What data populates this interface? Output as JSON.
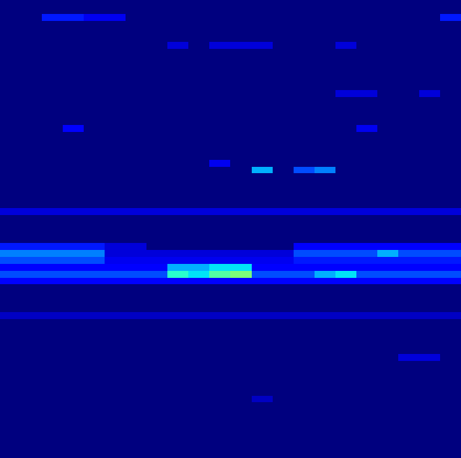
{
  "chart_data": {
    "type": "heatmap",
    "color": "jet",
    "tick_labels": false,
    "color_range": [
      0,
      1
    ],
    "cells": [
      [
        0,
        0,
        0,
        0,
        0,
        0,
        0,
        0,
        0,
        0,
        0,
        0,
        0,
        0,
        0,
        0,
        0,
        0,
        0,
        0,
        0,
        0
      ],
      [
        0,
        0,
        0,
        0,
        0,
        0,
        0,
        0,
        0,
        0,
        0,
        0,
        0,
        0,
        0,
        0,
        0,
        0,
        0,
        0,
        0,
        0
      ],
      [
        0,
        0,
        0.15,
        0.15,
        0.1,
        0.1,
        0,
        0,
        0,
        0,
        0,
        0,
        0,
        0,
        0,
        0,
        0,
        0,
        0,
        0,
        0,
        0.15
      ],
      [
        0,
        0,
        0,
        0,
        0,
        0,
        0,
        0,
        0,
        0,
        0,
        0,
        0,
        0,
        0,
        0,
        0,
        0,
        0,
        0,
        0,
        0
      ],
      [
        0,
        0,
        0,
        0,
        0,
        0,
        0,
        0,
        0,
        0,
        0,
        0,
        0,
        0,
        0,
        0,
        0,
        0,
        0,
        0,
        0,
        0
      ],
      [
        0,
        0,
        0,
        0,
        0,
        0,
        0,
        0,
        0,
        0,
        0,
        0,
        0,
        0,
        0,
        0,
        0,
        0,
        0,
        0,
        0,
        0
      ],
      [
        0,
        0,
        0,
        0,
        0,
        0,
        0,
        0,
        0.08,
        0,
        0.08,
        0.08,
        0.08,
        0,
        0,
        0,
        0.08,
        0,
        0,
        0,
        0,
        0
      ],
      [
        0,
        0,
        0,
        0,
        0,
        0,
        0,
        0,
        0,
        0,
        0,
        0,
        0,
        0,
        0,
        0,
        0,
        0,
        0,
        0,
        0,
        0
      ],
      [
        0,
        0,
        0,
        0,
        0,
        0,
        0,
        0,
        0,
        0,
        0,
        0,
        0,
        0,
        0,
        0,
        0,
        0,
        0,
        0,
        0,
        0
      ],
      [
        0,
        0,
        0,
        0,
        0,
        0,
        0,
        0,
        0,
        0,
        0,
        0,
        0,
        0,
        0,
        0,
        0,
        0,
        0,
        0,
        0,
        0
      ],
      [
        0,
        0,
        0,
        0,
        0,
        0,
        0,
        0,
        0,
        0,
        0,
        0,
        0,
        0,
        0,
        0,
        0,
        0,
        0,
        0,
        0,
        0
      ],
      [
        0,
        0,
        0,
        0,
        0,
        0,
        0,
        0,
        0,
        0,
        0,
        0,
        0,
        0,
        0,
        0,
        0,
        0,
        0,
        0,
        0,
        0
      ],
      [
        0,
        0,
        0,
        0,
        0,
        0,
        0,
        0,
        0,
        0,
        0,
        0,
        0,
        0,
        0,
        0,
        0,
        0,
        0,
        0,
        0,
        0
      ],
      [
        0,
        0,
        0,
        0,
        0,
        0,
        0,
        0,
        0,
        0,
        0,
        0,
        0,
        0,
        0,
        0,
        0.08,
        0.08,
        0,
        0,
        0.08,
        0
      ],
      [
        0,
        0,
        0,
        0,
        0,
        0,
        0,
        0,
        0,
        0,
        0,
        0,
        0,
        0,
        0,
        0,
        0,
        0,
        0,
        0,
        0,
        0
      ],
      [
        0,
        0,
        0,
        0,
        0,
        0,
        0,
        0,
        0,
        0,
        0,
        0,
        0,
        0,
        0,
        0,
        0,
        0,
        0,
        0,
        0,
        0
      ],
      [
        0,
        0,
        0,
        0,
        0,
        0,
        0,
        0,
        0,
        0,
        0,
        0,
        0,
        0,
        0,
        0,
        0,
        0,
        0,
        0,
        0,
        0
      ],
      [
        0,
        0,
        0,
        0,
        0,
        0,
        0,
        0,
        0,
        0,
        0,
        0,
        0,
        0,
        0,
        0,
        0,
        0,
        0,
        0,
        0,
        0
      ],
      [
        0,
        0,
        0,
        0.12,
        0,
        0,
        0,
        0,
        0,
        0,
        0,
        0,
        0,
        0,
        0,
        0,
        0,
        0.1,
        0,
        0,
        0,
        0
      ],
      [
        0,
        0,
        0,
        0,
        0,
        0,
        0,
        0,
        0,
        0,
        0,
        0,
        0,
        0,
        0,
        0,
        0,
        0,
        0,
        0,
        0,
        0
      ],
      [
        0,
        0,
        0,
        0,
        0,
        0,
        0,
        0,
        0,
        0,
        0,
        0,
        0,
        0,
        0,
        0,
        0,
        0,
        0,
        0,
        0,
        0
      ],
      [
        0,
        0,
        0,
        0,
        0,
        0,
        0,
        0,
        0,
        0,
        0,
        0,
        0,
        0,
        0,
        0,
        0,
        0,
        0,
        0,
        0,
        0
      ],
      [
        0,
        0,
        0,
        0,
        0,
        0,
        0,
        0,
        0,
        0,
        0,
        0,
        0,
        0,
        0,
        0,
        0,
        0,
        0,
        0,
        0,
        0
      ],
      [
        0,
        0,
        0,
        0,
        0,
        0,
        0,
        0,
        0,
        0,
        0.1,
        0,
        0,
        0,
        0,
        0,
        0,
        0,
        0,
        0,
        0,
        0
      ],
      [
        0,
        0,
        0,
        0,
        0,
        0,
        0,
        0,
        0,
        0,
        0,
        0,
        0.3,
        0,
        0.2,
        0.25,
        0,
        0,
        0,
        0,
        0,
        0
      ],
      [
        0,
        0,
        0,
        0,
        0,
        0,
        0,
        0,
        0,
        0,
        0,
        0,
        0,
        0,
        0,
        0,
        0,
        0,
        0,
        0,
        0,
        0
      ],
      [
        0,
        0,
        0,
        0,
        0,
        0,
        0,
        0,
        0,
        0,
        0,
        0,
        0,
        0,
        0,
        0,
        0,
        0,
        0,
        0,
        0,
        0
      ],
      [
        0,
        0,
        0,
        0,
        0,
        0,
        0,
        0,
        0,
        0,
        0,
        0,
        0,
        0,
        0,
        0,
        0,
        0,
        0,
        0,
        0,
        0
      ],
      [
        0,
        0,
        0,
        0,
        0,
        0,
        0,
        0,
        0,
        0,
        0,
        0,
        0,
        0,
        0,
        0,
        0,
        0,
        0,
        0,
        0,
        0
      ],
      [
        0,
        0,
        0,
        0,
        0,
        0,
        0,
        0,
        0,
        0,
        0,
        0,
        0,
        0,
        0,
        0,
        0,
        0,
        0,
        0,
        0,
        0
      ],
      [
        0.08,
        0.08,
        0.08,
        0.08,
        0.08,
        0.08,
        0.08,
        0.08,
        0.08,
        0.08,
        0.08,
        0.08,
        0.08,
        0.08,
        0.08,
        0.08,
        0.08,
        0.08,
        0.08,
        0.08,
        0.08,
        0.08
      ],
      [
        0,
        0,
        0,
        0,
        0,
        0,
        0,
        0,
        0,
        0,
        0,
        0,
        0,
        0,
        0,
        0,
        0,
        0,
        0,
        0,
        0,
        0
      ],
      [
        0,
        0,
        0,
        0,
        0,
        0,
        0,
        0,
        0,
        0,
        0,
        0,
        0,
        0,
        0,
        0,
        0,
        0,
        0,
        0,
        0,
        0
      ],
      [
        0,
        0,
        0,
        0,
        0,
        0,
        0,
        0,
        0,
        0,
        0,
        0,
        0,
        0,
        0,
        0,
        0,
        0,
        0,
        0,
        0,
        0
      ],
      [
        0,
        0,
        0,
        0,
        0,
        0,
        0,
        0,
        0,
        0,
        0,
        0,
        0,
        0,
        0,
        0,
        0,
        0,
        0,
        0,
        0,
        0
      ],
      [
        0.15,
        0.15,
        0.15,
        0.15,
        0.15,
        0.08,
        0.08,
        0,
        0,
        0,
        0,
        0,
        0,
        0,
        0.12,
        0.12,
        0.12,
        0.12,
        0.12,
        0.12,
        0.12,
        0.12
      ],
      [
        0.25,
        0.25,
        0.25,
        0.25,
        0.25,
        0.08,
        0.08,
        0.08,
        0.08,
        0.08,
        0.08,
        0.08,
        0.08,
        0.08,
        0.2,
        0.2,
        0.2,
        0.2,
        0.3,
        0.2,
        0.2,
        0.2
      ],
      [
        0.2,
        0.2,
        0.2,
        0.2,
        0.2,
        0.1,
        0.1,
        0.1,
        0.1,
        0.1,
        0.1,
        0.1,
        0.1,
        0.1,
        0.15,
        0.15,
        0.15,
        0.15,
        0.15,
        0.15,
        0.15,
        0.15
      ],
      [
        0.12,
        0.12,
        0.12,
        0.12,
        0.12,
        0.12,
        0.12,
        0.12,
        0.3,
        0.3,
        0.35,
        0.35,
        0.12,
        0.12,
        0.12,
        0.12,
        0.12,
        0.12,
        0.12,
        0.12,
        0.12,
        0.12
      ],
      [
        0.2,
        0.2,
        0.2,
        0.2,
        0.2,
        0.2,
        0.2,
        0.2,
        0.4,
        0.35,
        0.45,
        0.5,
        0.2,
        0.2,
        0.2,
        0.3,
        0.35,
        0.2,
        0.2,
        0.2,
        0.2,
        0.2
      ],
      [
        0.12,
        0.12,
        0.12,
        0.12,
        0.12,
        0.12,
        0.12,
        0.12,
        0.12,
        0.12,
        0.12,
        0.12,
        0.12,
        0.12,
        0.12,
        0.12,
        0.12,
        0.12,
        0.12,
        0.12,
        0.12,
        0.12
      ],
      [
        0,
        0,
        0,
        0,
        0,
        0,
        0,
        0,
        0,
        0,
        0,
        0,
        0,
        0,
        0,
        0,
        0,
        0,
        0,
        0,
        0,
        0
      ],
      [
        0,
        0,
        0,
        0,
        0,
        0,
        0,
        0,
        0,
        0,
        0,
        0,
        0,
        0,
        0,
        0,
        0,
        0,
        0,
        0,
        0,
        0
      ],
      [
        0,
        0,
        0,
        0,
        0,
        0,
        0,
        0,
        0,
        0,
        0,
        0,
        0,
        0,
        0,
        0,
        0,
        0,
        0,
        0,
        0,
        0
      ],
      [
        0,
        0,
        0,
        0,
        0,
        0,
        0,
        0,
        0,
        0,
        0,
        0,
        0,
        0,
        0,
        0,
        0,
        0,
        0,
        0,
        0,
        0
      ],
      [
        0.06,
        0.06,
        0.06,
        0.06,
        0.06,
        0.06,
        0.06,
        0.06,
        0.06,
        0.06,
        0.06,
        0.06,
        0.06,
        0.06,
        0.06,
        0.06,
        0.06,
        0.06,
        0.06,
        0.06,
        0.06,
        0.06
      ],
      [
        0,
        0,
        0,
        0,
        0,
        0,
        0,
        0,
        0,
        0,
        0,
        0,
        0,
        0,
        0,
        0,
        0,
        0,
        0,
        0,
        0,
        0
      ],
      [
        0,
        0,
        0,
        0,
        0,
        0,
        0,
        0,
        0,
        0,
        0,
        0,
        0,
        0,
        0,
        0,
        0,
        0,
        0,
        0,
        0,
        0
      ],
      [
        0,
        0,
        0,
        0,
        0,
        0,
        0,
        0,
        0,
        0,
        0,
        0,
        0,
        0,
        0,
        0,
        0,
        0,
        0,
        0,
        0,
        0
      ],
      [
        0,
        0,
        0,
        0,
        0,
        0,
        0,
        0,
        0,
        0,
        0,
        0,
        0,
        0,
        0,
        0,
        0,
        0,
        0,
        0,
        0,
        0
      ],
      [
        0,
        0,
        0,
        0,
        0,
        0,
        0,
        0,
        0,
        0,
        0,
        0,
        0,
        0,
        0,
        0,
        0,
        0,
        0,
        0,
        0,
        0
      ],
      [
        0,
        0,
        0,
        0,
        0,
        0,
        0,
        0,
        0,
        0,
        0,
        0,
        0,
        0,
        0,
        0,
        0,
        0,
        0,
        0.08,
        0.08,
        0
      ],
      [
        0,
        0,
        0,
        0,
        0,
        0,
        0,
        0,
        0,
        0,
        0,
        0,
        0,
        0,
        0,
        0,
        0,
        0,
        0,
        0,
        0,
        0
      ],
      [
        0,
        0,
        0,
        0,
        0,
        0,
        0,
        0,
        0,
        0,
        0,
        0,
        0,
        0,
        0,
        0,
        0,
        0,
        0,
        0,
        0,
        0
      ],
      [
        0,
        0,
        0,
        0,
        0,
        0,
        0,
        0,
        0,
        0,
        0,
        0,
        0,
        0,
        0,
        0,
        0,
        0,
        0,
        0,
        0,
        0
      ],
      [
        0,
        0,
        0,
        0,
        0,
        0,
        0,
        0,
        0,
        0,
        0,
        0,
        0,
        0,
        0,
        0,
        0,
        0,
        0,
        0,
        0,
        0
      ],
      [
        0,
        0,
        0,
        0,
        0,
        0,
        0,
        0,
        0,
        0,
        0,
        0,
        0,
        0,
        0,
        0,
        0,
        0,
        0,
        0,
        0,
        0
      ],
      [
        0,
        0,
        0,
        0,
        0,
        0,
        0,
        0,
        0,
        0,
        0,
        0,
        0.06,
        0,
        0,
        0,
        0,
        0,
        0,
        0,
        0,
        0
      ],
      [
        0,
        0,
        0,
        0,
        0,
        0,
        0,
        0,
        0,
        0,
        0,
        0,
        0,
        0,
        0,
        0,
        0,
        0,
        0,
        0,
        0,
        0
      ],
      [
        0,
        0,
        0,
        0,
        0,
        0,
        0,
        0,
        0,
        0,
        0,
        0,
        0,
        0,
        0,
        0,
        0,
        0,
        0,
        0,
        0,
        0
      ],
      [
        0,
        0,
        0,
        0,
        0,
        0,
        0,
        0,
        0,
        0,
        0,
        0,
        0,
        0,
        0,
        0,
        0,
        0,
        0,
        0,
        0,
        0
      ],
      [
        0,
        0,
        0,
        0,
        0,
        0,
        0,
        0,
        0,
        0,
        0,
        0,
        0,
        0,
        0,
        0,
        0,
        0,
        0,
        0,
        0,
        0
      ],
      [
        0,
        0,
        0,
        0,
        0,
        0,
        0,
        0,
        0,
        0,
        0,
        0,
        0,
        0,
        0,
        0,
        0,
        0,
        0,
        0,
        0,
        0
      ],
      [
        0,
        0,
        0,
        0,
        0,
        0,
        0,
        0,
        0,
        0,
        0,
        0,
        0,
        0,
        0,
        0,
        0,
        0,
        0,
        0,
        0,
        0
      ],
      [
        0,
        0,
        0,
        0,
        0,
        0,
        0,
        0,
        0,
        0,
        0,
        0,
        0,
        0,
        0,
        0,
        0,
        0,
        0,
        0,
        0,
        0
      ],
      [
        0,
        0,
        0,
        0,
        0,
        0,
        0,
        0,
        0,
        0,
        0,
        0,
        0,
        0,
        0,
        0,
        0,
        0,
        0,
        0,
        0,
        0
      ]
    ]
  }
}
